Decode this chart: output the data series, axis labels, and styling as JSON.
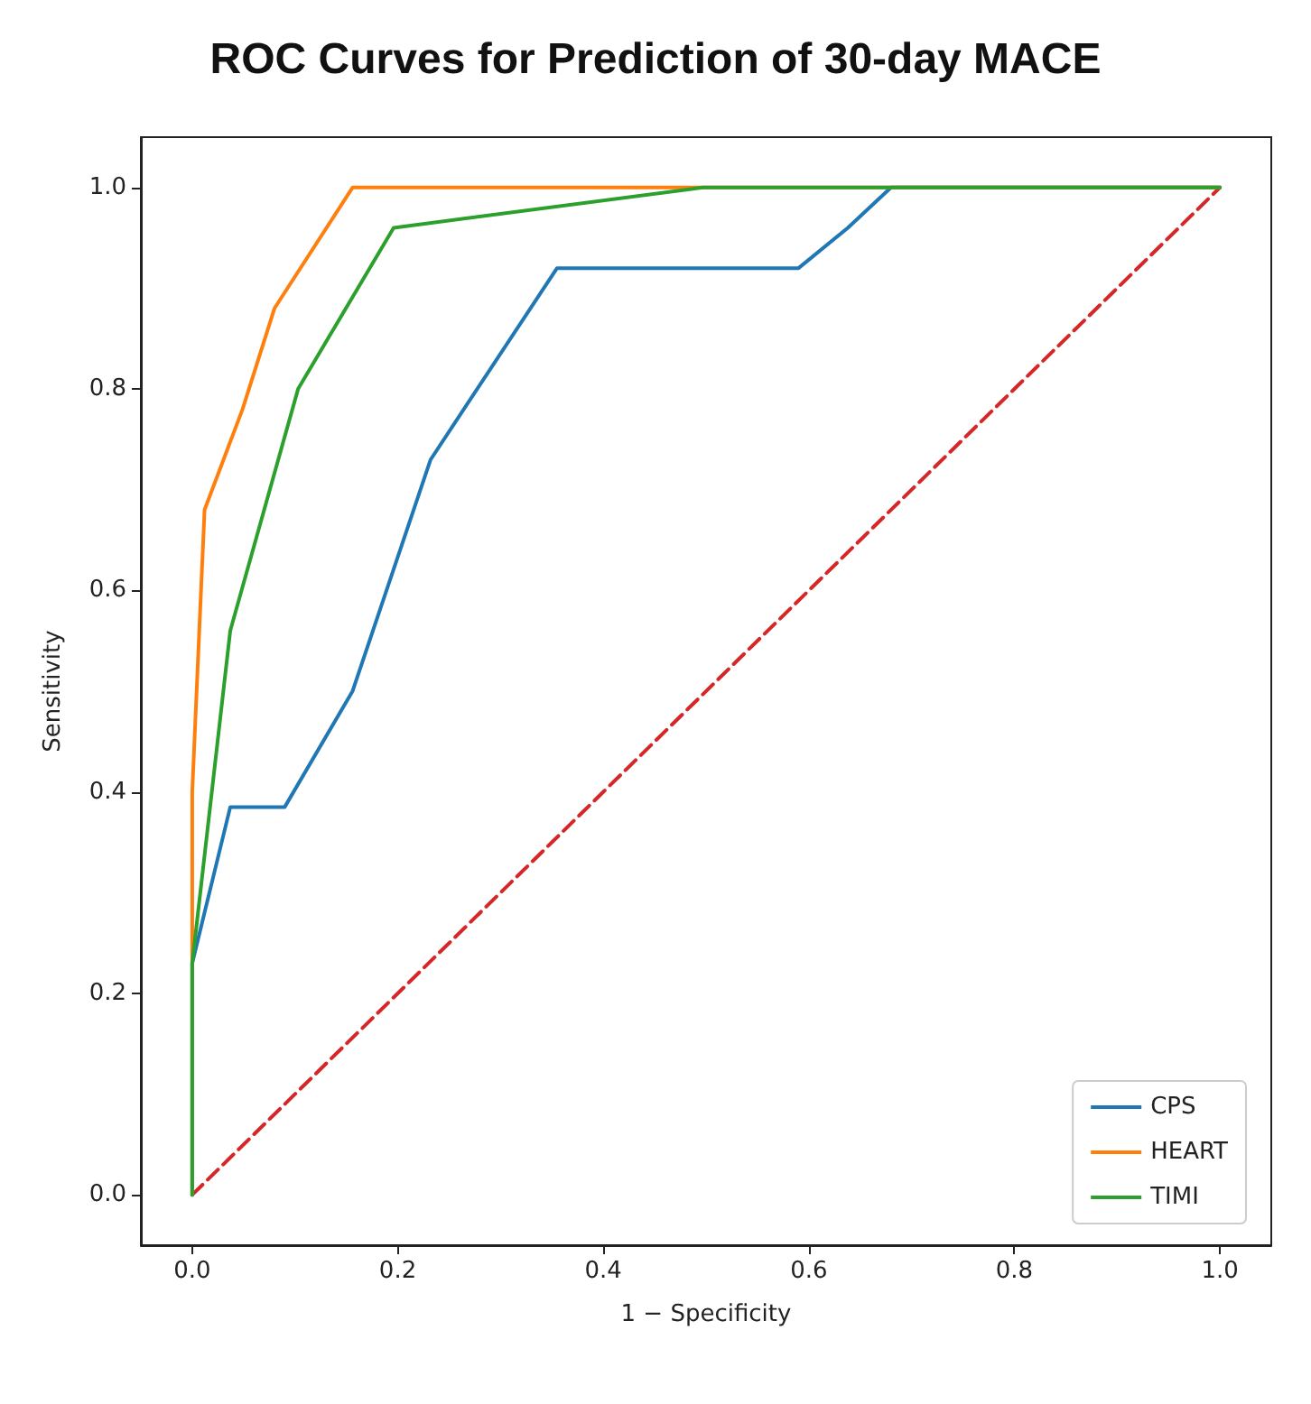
{
  "chart_data": {
    "type": "line",
    "title": "ROC Curves for Prediction of 30-day MACE",
    "xlabel": "1 − Specificity",
    "ylabel": "Sensitivity",
    "xlim": [
      -0.05,
      1.05
    ],
    "ylim": [
      -0.05,
      1.05
    ],
    "xticks": [
      {
        "value": 0,
        "label": "0.0"
      },
      0.2,
      0.4,
      0.6,
      0.8,
      {
        "value": 1,
        "label": "1.0"
      }
    ],
    "yticks": [
      {
        "value": 0,
        "label": "0.0"
      },
      0.2,
      0.4,
      0.6,
      0.8,
      {
        "value": 1,
        "label": "1.0"
      }
    ],
    "grid": false,
    "legend": "bottom right",
    "marker": "none",
    "line_style": "solid",
    "series": [
      {
        "name": "CPS",
        "color": "#1f77b4",
        "x": [
          0,
          0,
          0.037,
          0.09,
          0.156,
          0.232,
          0.355,
          0.59,
          0.638,
          0.68,
          1
        ],
        "values": [
          0,
          0.23,
          0.385,
          0.385,
          0.5,
          0.73,
          0.92,
          0.92,
          0.96,
          1,
          1
        ]
      },
      {
        "name": "HEART",
        "color": "#ff7f0e",
        "x": [
          0,
          0,
          0.012,
          0.049,
          0.08,
          0.156,
          1
        ],
        "values": [
          0,
          0.4,
          0.68,
          0.78,
          0.88,
          1,
          1
        ]
      },
      {
        "name": "TIMI",
        "color": "#2ca02c",
        "x": [
          0,
          0,
          0.037,
          0.103,
          0.196,
          0.497,
          1
        ],
        "values": [
          0,
          0.23,
          0.56,
          0.8,
          0.96,
          1,
          1
        ]
      },
      {
        "color": "#d62728",
        "line_style": "dashed",
        "x": [
          0,
          1
        ],
        "values": [
          0,
          1
        ]
      }
    ]
  }
}
